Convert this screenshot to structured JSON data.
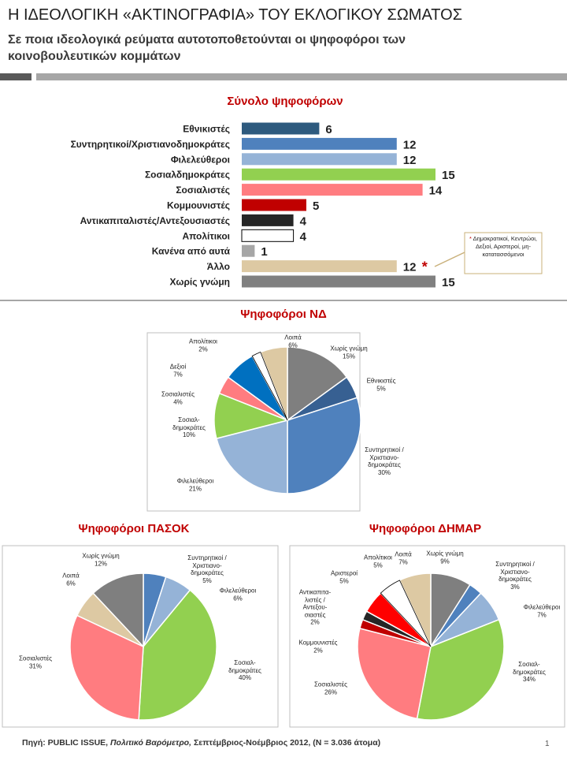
{
  "header": {
    "title": "Η ΙΔΕΟΛΟΓΙΚΗ «ΑΚΤΙΝΟΓΡΑΦΙΑ» ΤΟΥ ΕΚΛΟΓΙΚΟΥ ΣΩΜΑΤΟΣ",
    "subtitle": "Σε ποια ιδεολογικά ρεύματα αυτοτοποθετούνται οι ψηφοφόροι των κοινοβουλευτικών κομμάτων"
  },
  "chart_data": [
    {
      "type": "bar",
      "orientation": "horizontal",
      "title": "Σύνολο ψηφοφόρων",
      "categories": [
        "Εθνικιστές",
        "Συντηρητικοί/Χριστιανοδημοκράτες",
        "Φιλελεύθεροι",
        "Σοσιαλδημοκράτες",
        "Σοσιαλιστές",
        "Κομμουνιστές",
        "Αντικαπιταλιστές/Αντεξουσιαστές",
        "Απολίτικοι",
        "Κανένα από αυτά",
        "Άλλο",
        "Χωρίς γνώμη"
      ],
      "values": [
        6,
        12,
        12,
        15,
        14,
        5,
        4,
        4,
        1,
        12,
        15
      ],
      "colors": [
        "#2e5a7e",
        "#4f81bd",
        "#95b3d7",
        "#92d050",
        "#ff7c80",
        "#c00000",
        "#262626",
        "#ffffff",
        "#a6a6a6",
        "#ddc9a3",
        "#808080"
      ],
      "note": {
        "marker": "*",
        "text": "Δημοκρατικοί, Κεντρώοι, Δεξιοί, Αριστεροί, μη-κατατασσόμενοι"
      }
    },
    {
      "type": "pie",
      "title": "Ψηφοφόροι ΝΔ",
      "categories": [
        "Χωρίς γνώμη",
        "Εθνικιστές",
        "Συντηρητικοί /\nΧριστιανο-\nδημοκράτες",
        "Φιλελεύθεροι",
        "Σοσιαλ-\nδημοκράτες",
        "Σοσιαλιστές",
        "Δεξιοί",
        "Απολίτικοι",
        "Λοιπά"
      ],
      "values": [
        15,
        5,
        30,
        21,
        10,
        4,
        7,
        2,
        6
      ],
      "value_labels": [
        "15%",
        "5%",
        "30%",
        "21%",
        "10%",
        "4%",
        "7%",
        "2%",
        "6%"
      ],
      "colors": [
        "#7f7f7f",
        "#376092",
        "#4f81bd",
        "#95b3d7",
        "#92d050",
        "#ff7c80",
        "#0070c0",
        "#ffffff",
        "#ddc9a3"
      ]
    },
    {
      "type": "pie",
      "title": "Ψηφοφόροι ΠΑΣΟΚ",
      "categories": [
        "Συντηρητικοί /\nΧριστιανο-\nδημοκράτες",
        "Φιλελεύθεροι",
        "Σοσιαλ-\nδημοκράτες",
        "Σοσιαλιστές",
        "Λοιπά",
        "Χωρίς γνώμη"
      ],
      "values": [
        5,
        6,
        40,
        31,
        6,
        12
      ],
      "value_labels": [
        "5%",
        "6%",
        "40%",
        "31%",
        "6%",
        "12%"
      ],
      "colors": [
        "#4f81bd",
        "#95b3d7",
        "#92d050",
        "#ff7c80",
        "#ddc9a3",
        "#7f7f7f"
      ]
    },
    {
      "type": "pie",
      "title": "Ψηφοφόροι ΔΗΜΑΡ",
      "categories": [
        "Χωρίς γνώμη",
        "Συντηρητικοί /\nΧριστιανο-\nδημοκράτες",
        "Φιλελεύθεροι",
        "Σοσιαλ-\nδημοκράτες",
        "Σοσιαλιστές",
        "Κομμουνιστές",
        "Αντικαπιτα-\nλιστές /\nΑντεξου-\nσιαστές",
        "Αριστεροί",
        "Απολίτικοι",
        "Λοιπά"
      ],
      "values": [
        9,
        3,
        7,
        34,
        26,
        2,
        2,
        5,
        5,
        7
      ],
      "value_labels": [
        "9%",
        "3%",
        "7%",
        "34%",
        "26%",
        "2%",
        "2%",
        "5%",
        "5%",
        "7%"
      ],
      "colors": [
        "#7f7f7f",
        "#4f81bd",
        "#95b3d7",
        "#92d050",
        "#ff7c80",
        "#c00000",
        "#262626",
        "#ff0000",
        "#ffffff",
        "#ddc9a3"
      ]
    }
  ],
  "footer": {
    "source": "Πηγή: PUBLIC ISSUE,",
    "survey": "Πολιτικό Βαρόμετρο,",
    "period": "Σεπτέμβριος-Νοέμβριος 2012, (N = 3.036 άτομα)",
    "page": "1"
  }
}
